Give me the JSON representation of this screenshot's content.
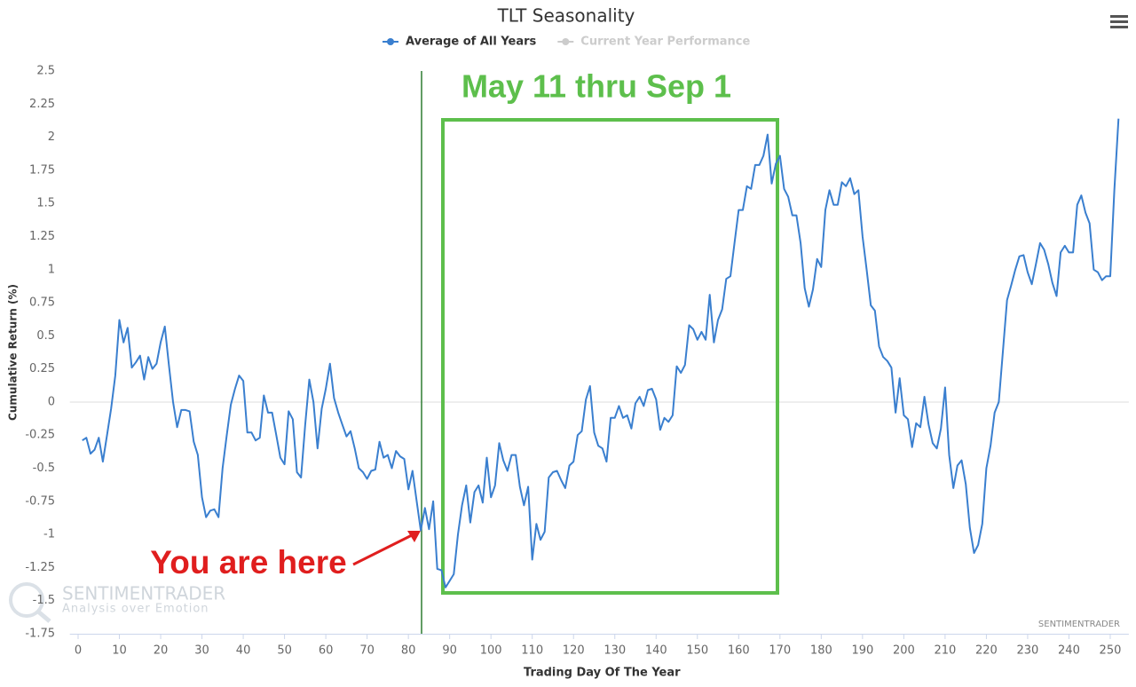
{
  "chart_data": {
    "type": "line",
    "title": "TLT Seasonality",
    "x_label": "Trading Day Of The Year",
    "y_label": "Cumulative Return (%)",
    "series": [
      {
        "name": "Average of All Years",
        "color": "#3a7fcf",
        "values": [
          -0.29,
          -0.27,
          -0.39,
          -0.36,
          -0.27,
          -0.45,
          -0.25,
          -0.05,
          0.2,
          0.62,
          0.45,
          0.56,
          0.26,
          0.3,
          0.35,
          0.17,
          0.34,
          0.25,
          0.29,
          0.45,
          0.57,
          0.28,
          0.0,
          -0.19,
          -0.06,
          -0.06,
          -0.07,
          -0.3,
          -0.4,
          -0.72,
          -0.87,
          -0.82,
          -0.81,
          -0.87,
          -0.5,
          -0.25,
          -0.02,
          0.1,
          0.2,
          0.16,
          -0.23,
          -0.23,
          -0.29,
          -0.27,
          0.05,
          -0.08,
          -0.08,
          -0.25,
          -0.42,
          -0.47,
          -0.07,
          -0.13,
          -0.53,
          -0.57,
          -0.17,
          0.17,
          0.0,
          -0.35,
          -0.05,
          0.1,
          0.29,
          0.03,
          -0.08,
          -0.17,
          -0.26,
          -0.22,
          -0.35,
          -0.5,
          -0.53,
          -0.58,
          -0.52,
          -0.51,
          -0.3,
          -0.42,
          -0.4,
          -0.5,
          -0.37,
          -0.41,
          -0.43,
          -0.66,
          -0.52,
          -0.75,
          -0.97,
          -0.8,
          -0.96,
          -0.75,
          -1.26,
          -1.27,
          -1.4,
          -1.35,
          -1.3,
          -1.0,
          -0.78,
          -0.63,
          -0.91,
          -0.68,
          -0.63,
          -0.76,
          -0.42,
          -0.72,
          -0.63,
          -0.31,
          -0.44,
          -0.52,
          -0.4,
          -0.4,
          -0.64,
          -0.78,
          -0.64,
          -1.19,
          -0.92,
          -1.04,
          -0.98,
          -0.57,
          -0.53,
          -0.52,
          -0.59,
          -0.65,
          -0.48,
          -0.45,
          -0.25,
          -0.22,
          0.02,
          0.12,
          -0.23,
          -0.33,
          -0.35,
          -0.45,
          -0.12,
          -0.12,
          -0.03,
          -0.12,
          -0.1,
          -0.2,
          -0.01,
          0.04,
          -0.03,
          0.09,
          0.1,
          0.02,
          -0.21,
          -0.12,
          -0.15,
          -0.1,
          0.27,
          0.22,
          0.28,
          0.58,
          0.55,
          0.47,
          0.53,
          0.47,
          0.81,
          0.45,
          0.62,
          0.7,
          0.93,
          0.95,
          1.2,
          1.45,
          1.45,
          1.63,
          1.61,
          1.79,
          1.79,
          1.86,
          2.02,
          1.65,
          1.8,
          1.86,
          1.61,
          1.55,
          1.41,
          1.41,
          1.2,
          0.86,
          0.72,
          0.85,
          1.08,
          1.02,
          1.45,
          1.6,
          1.49,
          1.49,
          1.66,
          1.63,
          1.69,
          1.57,
          1.6,
          1.25,
          1.0,
          0.73,
          0.69,
          0.42,
          0.34,
          0.31,
          0.26,
          -0.08,
          0.18,
          -0.1,
          -0.13,
          -0.34,
          -0.16,
          -0.19,
          0.04,
          -0.17,
          -0.31,
          -0.35,
          -0.2,
          0.11,
          -0.4,
          -0.65,
          -0.48,
          -0.44,
          -0.62,
          -0.95,
          -1.14,
          -1.08,
          -0.92,
          -0.5,
          -0.33,
          -0.08,
          0.0,
          0.38,
          0.77,
          0.88,
          1.0,
          1.1,
          1.11,
          0.98,
          0.89,
          1.04,
          1.2,
          1.15,
          1.04,
          0.9,
          0.8,
          1.13,
          1.18,
          1.13,
          1.13,
          1.49,
          1.56,
          1.43,
          1.35,
          1.0,
          0.98,
          0.92,
          0.95,
          0.95,
          1.6,
          2.14
        ]
      },
      {
        "name": "Current Year Performance",
        "color": "#cccccc",
        "hidden": true
      }
    ],
    "x": [
      1,
      2,
      3,
      4,
      5,
      6,
      7,
      8,
      9,
      10,
      11,
      12,
      13,
      14,
      15,
      16,
      17,
      18,
      19,
      20,
      21,
      22,
      23,
      24,
      25,
      26,
      27,
      28,
      29,
      30,
      31,
      32,
      33,
      34,
      35,
      36,
      37,
      38,
      39,
      40,
      41,
      42,
      43,
      44,
      45,
      46,
      47,
      48,
      49,
      50,
      51,
      52,
      53,
      54,
      55,
      56,
      57,
      58,
      59,
      60,
      61,
      62,
      63,
      64,
      65,
      66,
      67,
      68,
      69,
      70,
      71,
      72,
      73,
      74,
      75,
      76,
      77,
      78,
      79,
      80,
      81,
      82,
      83,
      84,
      85,
      86,
      87,
      88,
      89,
      90,
      91,
      92,
      93,
      94,
      95,
      96,
      97,
      98,
      99,
      100,
      101,
      102,
      103,
      104,
      105,
      106,
      107,
      108,
      109,
      110,
      111,
      112,
      113,
      114,
      115,
      116,
      117,
      118,
      119,
      120,
      121,
      122,
      123,
      124,
      125,
      126,
      127,
      128,
      129,
      130,
      131,
      132,
      133,
      134,
      135,
      136,
      137,
      138,
      139,
      140,
      141,
      142,
      143,
      144,
      145,
      146,
      147,
      148,
      149,
      150,
      151,
      152,
      153,
      154,
      155,
      156,
      157,
      158,
      159,
      160,
      161,
      162,
      163,
      164,
      165,
      166,
      167,
      168,
      169,
      170,
      171,
      172,
      173,
      174,
      175,
      176,
      177,
      178,
      179,
      180,
      181,
      182,
      183,
      184,
      185,
      186,
      187,
      188,
      189,
      190,
      191,
      192,
      193,
      194,
      195,
      196,
      197,
      198,
      199,
      200,
      201,
      202,
      203,
      204,
      205,
      206,
      207,
      208,
      209,
      210,
      211,
      212,
      213,
      214,
      215,
      216,
      217,
      218,
      219,
      220,
      221,
      222,
      223,
      224,
      225,
      226,
      227,
      228,
      229,
      230,
      231,
      232,
      233,
      234,
      235,
      236,
      237,
      238,
      239,
      240,
      241,
      242,
      243,
      244,
      245,
      246,
      247,
      248,
      249,
      250,
      251,
      252
    ],
    "xlim": [
      -2,
      254.5
    ],
    "xticks": [
      0,
      10,
      20,
      30,
      40,
      50,
      60,
      70,
      80,
      90,
      100,
      110,
      120,
      130,
      140,
      150,
      160,
      170,
      180,
      190,
      200,
      210,
      220,
      230,
      240,
      250
    ],
    "ylim": [
      -1.75,
      2.5
    ],
    "yticks": [
      -1.75,
      -1.5,
      -1.25,
      -1,
      -0.75,
      -0.5,
      -0.25,
      0,
      0.25,
      0.5,
      0.75,
      1,
      1.25,
      1.5,
      1.75,
      2,
      2.25,
      2.5
    ],
    "annotations": {
      "window": "May 11 thru Sep 1",
      "marker": "You are here"
    },
    "watermark": {
      "name": "SENTIMENTRADER",
      "tagline": "Analysis over Emotion"
    },
    "credit": "SENTIMENTRADER"
  }
}
